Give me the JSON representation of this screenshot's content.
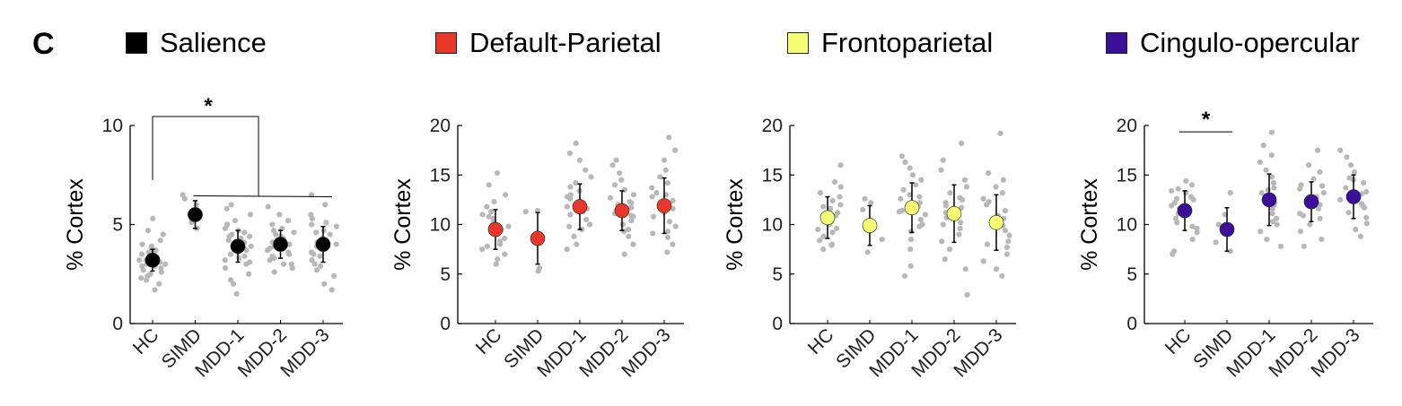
{
  "panel_letter": "C",
  "legend": [
    {
      "label": "Salience",
      "color": "#000000"
    },
    {
      "label": "Default-Parietal",
      "color": "#e8382a"
    },
    {
      "label": "Frontoparietal",
      "color": "#f3fe73"
    },
    {
      "label": "Cingulo-opercular",
      "color": "#3b0f99"
    }
  ],
  "chart_data": [
    {
      "type": "scatter",
      "title": "Salience",
      "ylabel": "% Cortex",
      "categories": [
        "HC",
        "SIMD",
        "MDD-1",
        "MDD-2",
        "MDD-3"
      ],
      "ylim": [
        0,
        10
      ],
      "yticks": [
        0,
        5,
        10
      ],
      "marker_color": "#000000",
      "series": [
        {
          "mean": 3.2,
          "sd": 0.55,
          "points": [
            2.0,
            2.3,
            2.5,
            2.6,
            2.7,
            2.8,
            2.9,
            3.0,
            3.0,
            3.1,
            3.2,
            3.2,
            3.3,
            3.4,
            3.5,
            3.6,
            3.7,
            3.8,
            3.9,
            4.0,
            4.2,
            4.5,
            4.7,
            5.3,
            1.7,
            2.2,
            2.9,
            3.6,
            3.3,
            2.4
          ]
        },
        {
          "mean": 5.5,
          "sd": 0.7,
          "points": [
            4.8,
            5.1,
            5.5,
            6.0,
            6.3,
            6.5
          ]
        },
        {
          "mean": 3.9,
          "sd": 0.8,
          "points": [
            1.5,
            2.0,
            2.5,
            2.8,
            3.0,
            3.2,
            3.3,
            3.5,
            3.6,
            3.7,
            3.8,
            3.9,
            4.0,
            4.1,
            4.2,
            4.3,
            4.4,
            4.5,
            4.6,
            4.8,
            5.0,
            5.2,
            5.5,
            5.8,
            6.0,
            2.2,
            3.4,
            4.7,
            3.1,
            4.4
          ]
        },
        {
          "mean": 4.0,
          "sd": 0.7,
          "points": [
            2.6,
            2.8,
            3.0,
            3.2,
            3.4,
            3.5,
            3.6,
            3.7,
            3.8,
            3.9,
            4.0,
            4.1,
            4.2,
            4.3,
            4.4,
            4.5,
            4.6,
            4.8,
            5.0,
            5.2,
            5.5,
            5.9,
            3.3,
            4.1,
            4.7,
            3.0
          ]
        },
        {
          "mean": 4.0,
          "sd": 0.9,
          "points": [
            1.7,
            2.0,
            2.4,
            2.7,
            3.0,
            3.2,
            3.4,
            3.6,
            3.8,
            3.9,
            4.0,
            4.1,
            4.2,
            4.3,
            4.5,
            4.7,
            4.9,
            5.1,
            5.3,
            5.5,
            6.0,
            6.5,
            2.9,
            3.5,
            4.6,
            5.0
          ]
        }
      ],
      "significance": "*"
    },
    {
      "type": "scatter",
      "title": "Default-Parietal",
      "ylabel": "% Cortex",
      "categories": [
        "HC",
        "SIMD",
        "MDD-1",
        "MDD-2",
        "MDD-3"
      ],
      "ylim": [
        0,
        20
      ],
      "yticks": [
        0,
        5,
        10,
        15,
        20
      ],
      "marker_color": "#e8382a",
      "series": [
        {
          "mean": 9.5,
          "sd": 2.0,
          "points": [
            6.0,
            6.5,
            7.0,
            7.5,
            8.0,
            8.3,
            8.6,
            9.0,
            9.2,
            9.5,
            9.8,
            10.0,
            10.3,
            10.6,
            11.0,
            11.3,
            11.8,
            12.3,
            13.0,
            14.0,
            15.2,
            7.8,
            9.3,
            10.8
          ]
        },
        {
          "mean": 8.6,
          "sd": 2.6,
          "points": [
            5.3,
            5.6,
            11.3,
            11.4
          ]
        },
        {
          "mean": 11.8,
          "sd": 2.3,
          "points": [
            7.5,
            8.0,
            8.8,
            9.5,
            10.0,
            10.5,
            11.0,
            11.3,
            11.6,
            12.0,
            12.3,
            12.6,
            13.0,
            13.4,
            13.8,
            14.2,
            14.8,
            15.5,
            16.5,
            17.2,
            18.2,
            9.8,
            11.8,
            12.8
          ]
        },
        {
          "mean": 11.4,
          "sd": 2.0,
          "points": [
            7.0,
            8.0,
            8.8,
            9.5,
            10.0,
            10.4,
            10.8,
            11.1,
            11.4,
            11.7,
            12.0,
            12.3,
            12.7,
            13.0,
            13.5,
            14.0,
            14.5,
            15.2,
            16.0,
            16.5,
            9.3,
            10.9,
            12.2
          ]
        },
        {
          "mean": 11.9,
          "sd": 2.8,
          "points": [
            7.2,
            8.0,
            8.7,
            9.3,
            9.8,
            10.3,
            10.8,
            11.2,
            11.6,
            12.0,
            12.4,
            12.8,
            13.2,
            13.7,
            14.2,
            14.8,
            15.5,
            16.5,
            17.5,
            18.8,
            9.1,
            11.4,
            13.0
          ]
        }
      ]
    },
    {
      "type": "scatter",
      "title": "Frontoparietal",
      "ylabel": "% Cortex",
      "categories": [
        "HC",
        "SIMD",
        "MDD-1",
        "MDD-2",
        "MDD-3"
      ],
      "ylim": [
        0,
        20
      ],
      "yticks": [
        0,
        5,
        10,
        15,
        20
      ],
      "marker_color": "#f3fe73",
      "series": [
        {
          "mean": 10.7,
          "sd": 2.1,
          "points": [
            7.5,
            8.0,
            8.4,
            8.8,
            9.2,
            9.6,
            10.0,
            10.3,
            10.6,
            10.9,
            11.2,
            11.6,
            12.0,
            12.4,
            12.8,
            13.2,
            13.8,
            14.3,
            16.0,
            7.9,
            9.5,
            11.8
          ]
        },
        {
          "mean": 9.9,
          "sd": 2.0,
          "points": [
            7.2,
            8.5,
            9.5,
            11.5,
            12.2,
            12.6
          ]
        },
        {
          "mean": 11.7,
          "sd": 2.5,
          "points": [
            4.8,
            5.8,
            7.5,
            8.5,
            9.3,
            10.0,
            10.5,
            11.0,
            11.4,
            11.8,
            12.2,
            12.6,
            13.0,
            13.5,
            14.0,
            14.5,
            15.0,
            15.7,
            16.3,
            16.9,
            9.8,
            11.3,
            12.8
          ]
        },
        {
          "mean": 11.1,
          "sd": 2.9,
          "points": [
            2.9,
            5.5,
            6.5,
            7.5,
            8.3,
            9.0,
            9.6,
            10.2,
            10.7,
            11.2,
            11.7,
            12.2,
            12.7,
            13.2,
            13.8,
            14.5,
            15.5,
            16.5,
            18.2,
            10.0,
            11.9,
            12.5
          ]
        },
        {
          "mean": 10.2,
          "sd": 2.8,
          "points": [
            4.8,
            5.5,
            6.3,
            7.0,
            7.7,
            8.3,
            8.9,
            9.4,
            9.9,
            10.4,
            10.9,
            11.4,
            12.0,
            12.6,
            13.2,
            13.8,
            14.5,
            15.2,
            19.2,
            8.0,
            10.6,
            12.3
          ]
        }
      ]
    },
    {
      "type": "scatter",
      "title": "Cingulo-opercular",
      "ylabel": "% Cortex",
      "categories": [
        "HC",
        "SIMD",
        "MDD-1",
        "MDD-2",
        "MDD-3"
      ],
      "ylim": [
        0,
        20
      ],
      "yticks": [
        0,
        5,
        10,
        15,
        20
      ],
      "marker_color": "#3b0f99",
      "series": [
        {
          "mean": 11.4,
          "sd": 2.0,
          "points": [
            7.0,
            7.3,
            8.5,
            9.2,
            9.8,
            10.2,
            10.6,
            11.0,
            11.3,
            11.6,
            11.9,
            12.2,
            12.5,
            12.8,
            13.2,
            13.6,
            14.0,
            14.4,
            9.6,
            11.1,
            12.6,
            13.4
          ]
        },
        {
          "mean": 9.5,
          "sd": 2.2,
          "points": [
            7.3,
            8.2,
            10.0,
            11.0,
            13.2
          ]
        },
        {
          "mean": 12.5,
          "sd": 2.6,
          "points": [
            7.8,
            8.5,
            9.3,
            10.0,
            10.6,
            11.1,
            11.6,
            12.0,
            12.4,
            12.8,
            13.2,
            13.7,
            14.2,
            14.8,
            15.5,
            16.3,
            17.0,
            18.0,
            19.3,
            10.3,
            12.2,
            13.5
          ]
        },
        {
          "mean": 12.3,
          "sd": 2.0,
          "points": [
            7.8,
            8.5,
            9.3,
            10.0,
            10.6,
            11.1,
            11.6,
            12.0,
            12.4,
            12.8,
            13.2,
            13.6,
            14.0,
            14.6,
            15.3,
            16.0,
            17.5,
            10.9,
            12.6,
            13.9
          ]
        },
        {
          "mean": 12.8,
          "sd": 2.2,
          "points": [
            8.8,
            9.5,
            10.1,
            10.7,
            11.2,
            11.7,
            12.1,
            12.5,
            12.9,
            13.3,
            13.7,
            14.2,
            14.7,
            15.3,
            16.0,
            16.8,
            17.5,
            11.9,
            13.1,
            14.5
          ]
        }
      ],
      "significance": "*"
    }
  ]
}
